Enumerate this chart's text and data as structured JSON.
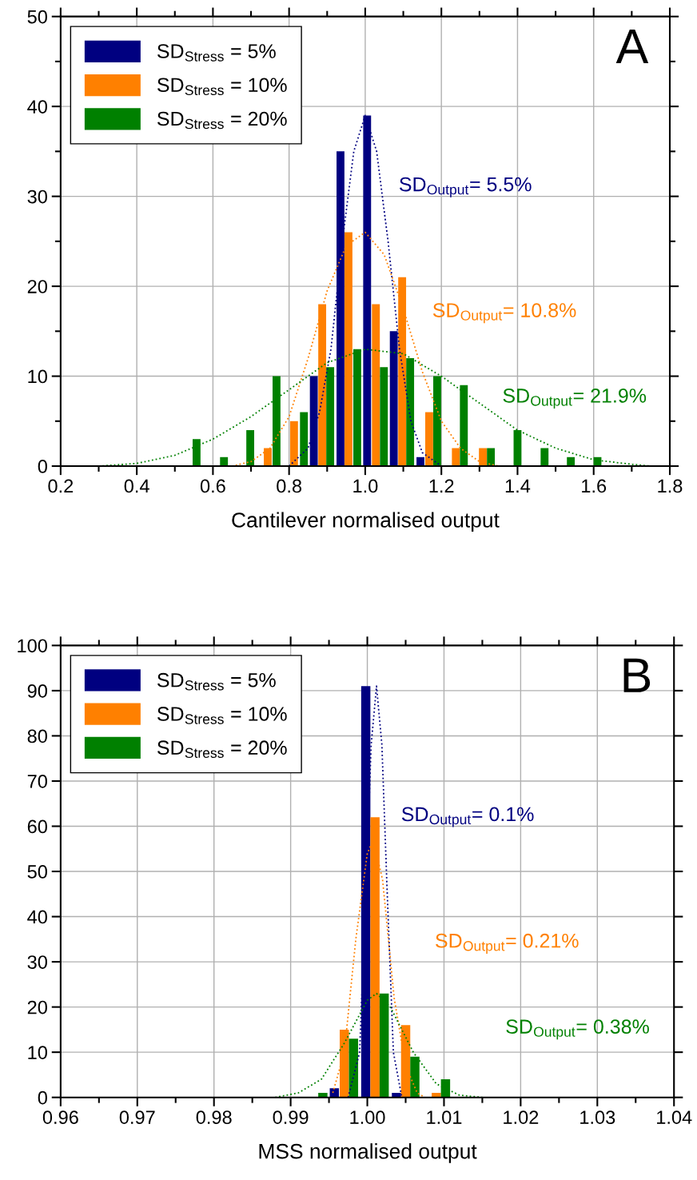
{
  "chart_data": [
    {
      "type": "bar",
      "title": "A",
      "xlabel": "Cantilever normalised output",
      "xlim": [
        0.2,
        1.8
      ],
      "xticks": [
        0.2,
        {
          "value": 0.3,
          "label": null
        },
        0.4,
        {
          "value": 0.5,
          "label": null
        },
        0.6,
        {
          "value": 0.7,
          "label": null
        },
        0.8,
        {
          "value": 0.9,
          "label": null
        },
        {
          "value": 1.0,
          "label": "1.0"
        },
        {
          "value": 1.1,
          "label": null
        },
        1.2,
        {
          "value": 1.3,
          "label": null
        },
        1.4,
        {
          "value": 1.5,
          "label": null
        },
        1.6,
        {
          "value": 1.7,
          "label": null
        },
        1.8
      ],
      "ylim": [
        0,
        50
      ],
      "yticks": [
        0,
        {
          "value": 5,
          "label": null
        },
        10,
        {
          "value": 15,
          "label": null
        },
        20,
        {
          "value": 25,
          "label": null
        },
        30,
        {
          "value": 35,
          "label": null
        },
        40,
        {
          "value": 45,
          "label": null
        },
        50
      ],
      "grid": true,
      "legend": "top left",
      "annotations": [
        "SD$_{Output}$= 5.5%",
        "SD$_{Output}$= 10.8%",
        "SD$_{Output}$= 21.9%"
      ],
      "series": [
        {
          "name": "SD$_{Stress}$ = 5%",
          "color": "#000080",
          "x": [
            0.865,
            0.935,
            1.005,
            1.075,
            1.145
          ],
          "values": [
            10,
            35,
            39,
            15,
            1
          ]
        },
        {
          "name": "SD$_{Stress}$ = 10%",
          "color": "#ff8000",
          "x": [
            0.744,
            0.813,
            0.887,
            0.956,
            1.028,
            1.097,
            1.168,
            1.238,
            1.309
          ],
          "values": [
            2,
            5,
            18,
            26,
            18,
            21,
            6,
            2,
            2
          ]
        },
        {
          "name": "SD$_{Stress}$ = 20%",
          "color": "#008000",
          "x": [
            0.557,
            0.629,
            0.698,
            0.767,
            0.839,
            0.908,
            0.979,
            1.049,
            1.118,
            1.189,
            1.259,
            1.33,
            1.4,
            1.471,
            1.54,
            1.61
          ],
          "values": [
            3,
            1,
            4,
            10,
            6,
            11,
            13,
            11,
            12,
            10,
            9,
            2,
            4,
            2,
            1,
            1
          ]
        },
        {
          "type": "line",
          "line_style": "dotted",
          "color": "#000080",
          "x": [
            0.8,
            0.85,
            0.88,
            0.91,
            0.94,
            0.97,
            1.0,
            1.03,
            1.06,
            1.09,
            1.12,
            1.15,
            1.2
          ],
          "values": [
            0,
            2,
            6,
            13,
            25,
            35,
            39,
            35,
            25,
            13,
            5,
            1.5,
            0
          ]
        },
        {
          "type": "line",
          "line_style": "dotted",
          "color": "#ff8000",
          "x": [
            0.65,
            0.7,
            0.75,
            0.8,
            0.85,
            0.9,
            0.95,
            1.0,
            1.05,
            1.1,
            1.15,
            1.2,
            1.25,
            1.3,
            1.35
          ],
          "values": [
            0,
            0.5,
            2,
            5.5,
            12,
            19.5,
            24.5,
            26,
            23.5,
            17.5,
            10.5,
            5,
            2,
            0.5,
            0
          ]
        },
        {
          "type": "line",
          "line_style": "dotted",
          "color": "#008000",
          "x": [
            0.3,
            0.4,
            0.5,
            0.6,
            0.7,
            0.8,
            0.9,
            1.0,
            1.1,
            1.2,
            1.3,
            1.4,
            1.5,
            1.6,
            1.7,
            1.75
          ],
          "values": [
            0,
            0.3,
            1.2,
            3,
            5.5,
            8.5,
            11.5,
            13,
            12.5,
            10,
            7,
            4,
            2,
            0.7,
            0.2,
            0
          ]
        }
      ]
    },
    {
      "type": "bar",
      "title": "B",
      "xlabel": "MSS normalised output",
      "xlim": [
        0.96,
        1.04
      ],
      "xticks": [
        0.96,
        {
          "value": 0.965,
          "label": null
        },
        0.97,
        {
          "value": 0.975,
          "label": null
        },
        0.98,
        {
          "value": 0.985,
          "label": null
        },
        0.99,
        {
          "value": 0.995,
          "label": null
        },
        {
          "value": 1.0,
          "label": "1.00"
        },
        {
          "value": 1.005,
          "label": null
        },
        1.01,
        {
          "value": 1.015,
          "label": null
        },
        1.02,
        {
          "value": 1.025,
          "label": null
        },
        1.03,
        {
          "value": 1.035,
          "label": null
        },
        1.04
      ],
      "ylim": [
        0,
        100
      ],
      "yticks": [
        0,
        10,
        20,
        30,
        40,
        50,
        60,
        70,
        80,
        90,
        100
      ],
      "grid": true,
      "legend": "top left",
      "annotations": [
        "SD$_{Output}$= 0.1%",
        "SD$_{Output}$= 0.21%",
        "SD$_{Output}$= 0.38%"
      ],
      "series": [
        {
          "name": "SD$_{Stress}$ = 5%",
          "color": "#000080",
          "x": [
            0.9957,
            0.9998,
            1.0038
          ],
          "values": [
            2,
            91,
            1
          ]
        },
        {
          "name": "SD$_{Stress}$ = 10%",
          "color": "#ff8000",
          "x": [
            0.997,
            1.001,
            1.005,
            1.009
          ],
          "values": [
            15,
            62,
            16,
            1
          ]
        },
        {
          "name": "SD$_{Stress}$ = 20%",
          "color": "#008000",
          "x": [
            0.9942,
            0.9982,
            1.0022,
            1.0062,
            1.0102
          ],
          "values": [
            1,
            13,
            23,
            9,
            4
          ]
        },
        {
          "type": "line",
          "line_style": "dotted",
          "color": "#000080",
          "x": [
            0.9975,
            0.999,
            0.9998,
            1.0005,
            1.0012,
            1.0019,
            1.0026,
            1.0034,
            1.0045
          ],
          "values": [
            0,
            10,
            45,
            78,
            91,
            78,
            45,
            10,
            0
          ]
        },
        {
          "type": "line",
          "line_style": "dotted",
          "color": "#ff8000",
          "x": [
            0.9955,
            0.997,
            0.9985,
            1.0,
            1.0008,
            1.002,
            1.0035,
            1.005,
            1.0065,
            1.0075
          ],
          "values": [
            1,
            10,
            35,
            54,
            57,
            48,
            22,
            7,
            1,
            0
          ]
        },
        {
          "type": "line",
          "line_style": "dotted",
          "color": "#008000",
          "x": [
            0.988,
            0.991,
            0.994,
            0.997,
            1.0,
            1.0012,
            1.003,
            1.006,
            1.009,
            1.012,
            1.015
          ],
          "values": [
            0,
            1,
            4,
            12,
            21.5,
            23,
            20,
            10,
            3,
            0.5,
            0
          ]
        }
      ]
    }
  ]
}
